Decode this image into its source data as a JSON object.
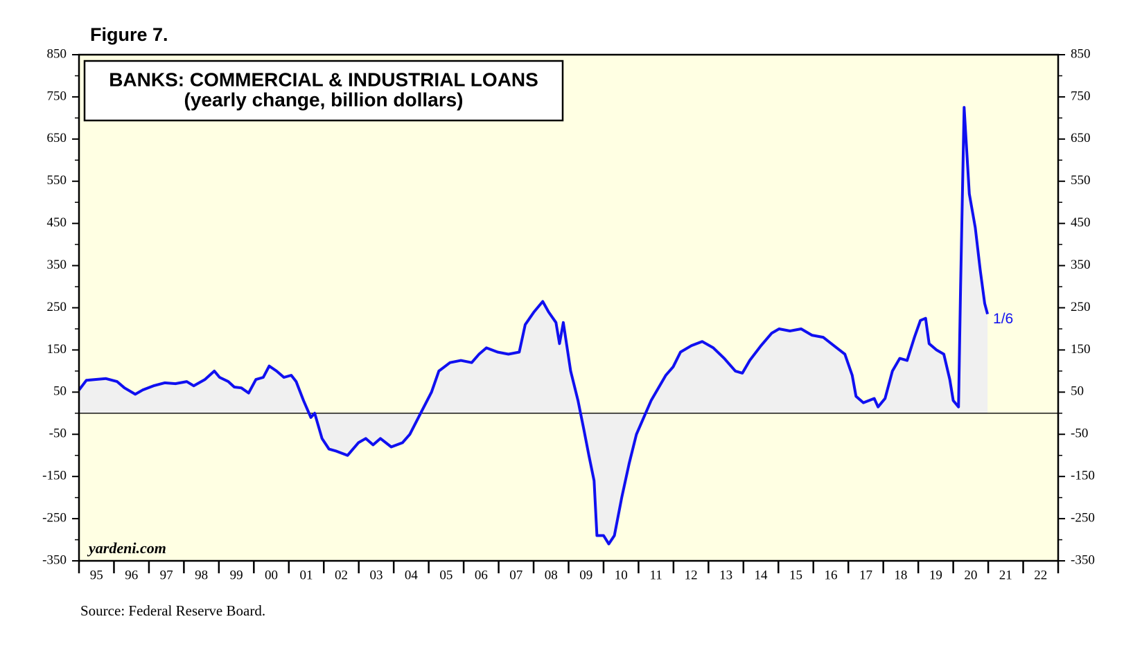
{
  "chart_data": {
    "type": "line",
    "figure_label": "Figure 7.",
    "title": "BANKS: COMMERCIAL & INDUSTRIAL LOANS",
    "subtitle": "(yearly change, billion dollars)",
    "watermark": "yardeni.com",
    "source": "Source: Federal Reserve Board.",
    "end_label": "1/6",
    "xlim": [
      1995,
      2023
    ],
    "xticks": [
      {
        "value": 1995.5,
        "label": "95"
      },
      {
        "value": 1996.5,
        "label": "96"
      },
      {
        "value": 1997.5,
        "label": "97"
      },
      {
        "value": 1998.5,
        "label": "98"
      },
      {
        "value": 1999.5,
        "label": "99"
      },
      {
        "value": 2000.5,
        "label": "00"
      },
      {
        "value": 2001.5,
        "label": "01"
      },
      {
        "value": 2002.5,
        "label": "02"
      },
      {
        "value": 2003.5,
        "label": "03"
      },
      {
        "value": 2004.5,
        "label": "04"
      },
      {
        "value": 2005.5,
        "label": "05"
      },
      {
        "value": 2006.5,
        "label": "06"
      },
      {
        "value": 2007.5,
        "label": "07"
      },
      {
        "value": 2008.5,
        "label": "08"
      },
      {
        "value": 2009.5,
        "label": "09"
      },
      {
        "value": 2010.5,
        "label": "10"
      },
      {
        "value": 2011.5,
        "label": "11"
      },
      {
        "value": 2012.5,
        "label": "12"
      },
      {
        "value": 2013.5,
        "label": "13"
      },
      {
        "value": 2014.5,
        "label": "14"
      },
      {
        "value": 2015.5,
        "label": "15"
      },
      {
        "value": 2016.5,
        "label": "16"
      },
      {
        "value": 2017.5,
        "label": "17"
      },
      {
        "value": 2018.5,
        "label": "18"
      },
      {
        "value": 2019.5,
        "label": "19"
      },
      {
        "value": 2020.5,
        "label": "20"
      },
      {
        "value": 2021.5,
        "label": "21"
      },
      {
        "value": 2022.5,
        "label": "22"
      }
    ],
    "ylim": [
      -350,
      850
    ],
    "yticks": [
      -350,
      -250,
      -150,
      -50,
      50,
      150,
      250,
      350,
      450,
      550,
      650,
      750,
      850
    ],
    "yminorticks": [
      -300,
      -200,
      -100,
      0,
      100,
      200,
      300,
      400,
      500,
      600,
      700,
      800
    ],
    "y2lim": [
      -350,
      850
    ],
    "y2ticks": [
      -350,
      -250,
      -150,
      -50,
      50,
      150,
      250,
      350,
      450,
      550,
      650,
      750,
      850
    ],
    "zero_line": 0,
    "background": "#ffffe3",
    "fill_color": "#f0f0f0",
    "series": [
      {
        "name": "C&I loans yearly change",
        "color": "#1010f0",
        "x": [
          1995.0,
          1995.21,
          1995.46,
          1995.77,
          1996.09,
          1996.3,
          1996.61,
          1996.82,
          1997.13,
          1997.45,
          1997.76,
          1998.08,
          1998.28,
          1998.6,
          1998.87,
          1999.02,
          1999.27,
          1999.44,
          1999.64,
          1999.85,
          2000.06,
          2000.27,
          2000.44,
          2000.65,
          2000.86,
          2001.07,
          2001.21,
          2001.42,
          2001.63,
          2001.74,
          2001.95,
          2002.15,
          2002.36,
          2002.68,
          2002.99,
          2003.2,
          2003.41,
          2003.62,
          2003.93,
          2004.25,
          2004.46,
          2004.77,
          2005.08,
          2005.29,
          2005.61,
          2005.92,
          2006.23,
          2006.44,
          2006.65,
          2006.97,
          2007.28,
          2007.59,
          2007.76,
          2008.01,
          2008.26,
          2008.43,
          2008.64,
          2008.74,
          2008.85,
          2009.06,
          2009.27,
          2009.44,
          2009.58,
          2009.73,
          2009.81,
          2010.0,
          2010.15,
          2010.31,
          2010.52,
          2010.73,
          2010.94,
          2011.15,
          2011.36,
          2011.57,
          2011.78,
          2011.99,
          2012.2,
          2012.51,
          2012.82,
          2013.14,
          2013.45,
          2013.77,
          2013.97,
          2014.18,
          2014.5,
          2014.81,
          2015.02,
          2015.33,
          2015.65,
          2015.96,
          2016.28,
          2016.59,
          2016.9,
          2017.11,
          2017.22,
          2017.43,
          2017.74,
          2017.85,
          2018.05,
          2018.26,
          2018.47,
          2018.68,
          2018.89,
          2019.06,
          2019.21,
          2019.31,
          2019.52,
          2019.73,
          2019.9,
          2020.0,
          2020.15,
          2020.21,
          2020.31,
          2020.46,
          2020.63,
          2020.77,
          2020.9,
          2020.98
        ],
        "values": [
          55,
          78,
          80,
          82,
          75,
          60,
          45,
          55,
          65,
          72,
          70,
          75,
          65,
          80,
          100,
          85,
          75,
          62,
          60,
          48,
          80,
          85,
          112,
          100,
          85,
          90,
          75,
          30,
          -10,
          0,
          -60,
          -85,
          -90,
          -100,
          -70,
          -60,
          -75,
          -60,
          -80,
          -70,
          -50,
          0,
          50,
          100,
          120,
          125,
          120,
          140,
          155,
          145,
          140,
          145,
          210,
          240,
          265,
          240,
          215,
          165,
          215,
          100,
          30,
          -40,
          -100,
          -160,
          -290,
          -290,
          -310,
          -290,
          -200,
          -120,
          -50,
          -10,
          30,
          60,
          90,
          110,
          145,
          160,
          170,
          155,
          130,
          100,
          95,
          125,
          160,
          190,
          200,
          195,
          200,
          185,
          180,
          160,
          140,
          90,
          40,
          25,
          35,
          15,
          35,
          100,
          130,
          125,
          180,
          220,
          225,
          165,
          150,
          140,
          80,
          30,
          15,
          300,
          725,
          520,
          440,
          340,
          260,
          235
        ]
      }
    ]
  }
}
